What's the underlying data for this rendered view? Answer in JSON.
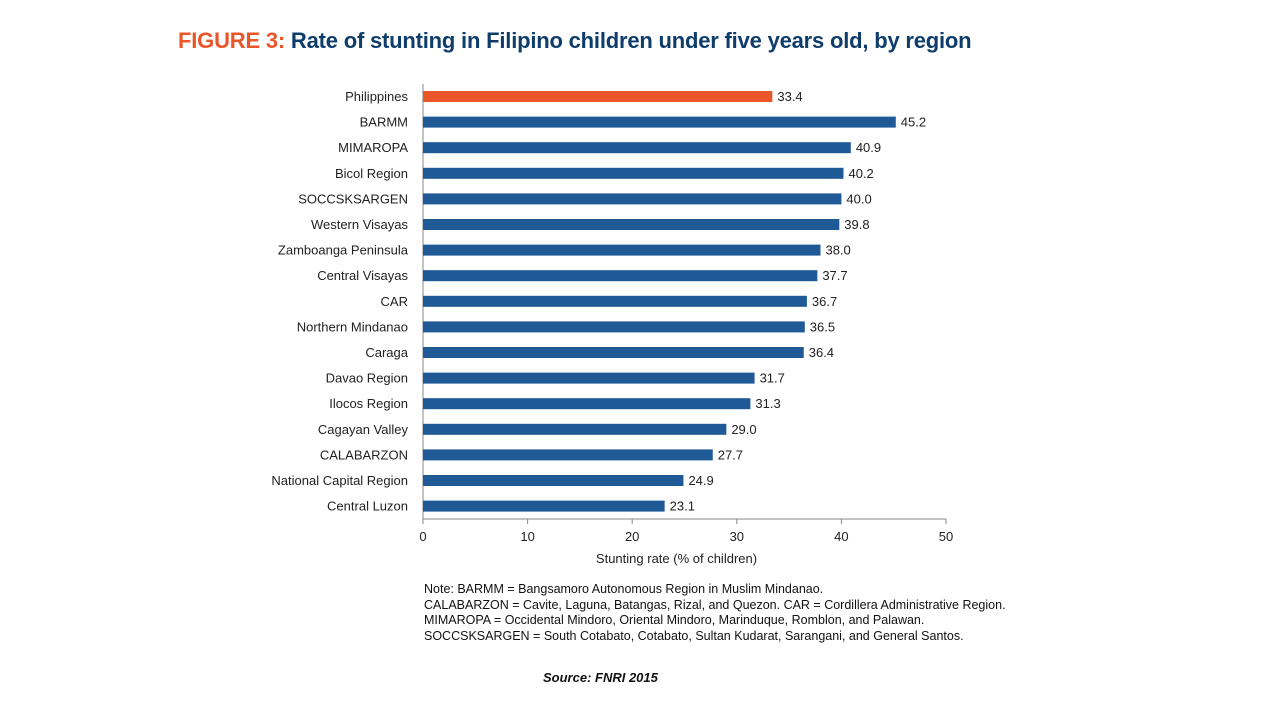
{
  "title": {
    "label": "FIGURE 3:",
    "text": "Rate of stunting in Filipino children under five years old, by region"
  },
  "chart_data": {
    "type": "bar",
    "orientation": "horizontal",
    "categories": [
      "Philippines",
      "BARMM",
      "MIMAROPA",
      "Bicol Region",
      "SOCCSKSARGEN",
      "Western Visayas",
      "Zamboanga Peninsula",
      "Central Visayas",
      "CAR",
      "Northern Mindanao",
      "Caraga",
      "Davao Region",
      "Ilocos Region",
      "Cagayan Valley",
      "CALABARZON",
      "National Capital Region",
      "Central Luzon"
    ],
    "values": [
      33.4,
      45.2,
      40.9,
      40.2,
      40.0,
      39.8,
      38.0,
      37.7,
      36.7,
      36.5,
      36.4,
      31.7,
      31.3,
      29.0,
      27.7,
      24.9,
      23.1
    ],
    "value_labels": [
      "33.4",
      "45.2",
      "40.9",
      "40.2",
      "40.0",
      "39.8",
      "38.0",
      "37.7",
      "36.7",
      "36.5",
      "36.4",
      "31.7",
      "31.3",
      "29.0",
      "27.7",
      "24.9",
      "23.1"
    ],
    "highlight_category": "Philippines",
    "colors": {
      "highlight": "#e8562a",
      "bar": "#1f5a96",
      "axis": "#888888"
    },
    "xlabel": "Stunting rate (% of children)",
    "xlim": [
      0,
      50
    ],
    "xticks": [
      0,
      10,
      20,
      30,
      40,
      50
    ],
    "grid": false
  },
  "note": {
    "lines": [
      "Note: BARMM = Bangsamoro Autonomous Region in Muslim Mindanao.",
      "CALABARZON = Cavite, Laguna, Batangas, Rizal, and Quezon. CAR = Cordillera Administrative Region.",
      "MIMAROPA = Occidental Mindoro, Oriental Mindoro, Marinduque, Romblon, and Palawan.",
      "SOCCSKSARGEN = South Cotabato, Cotabato, Sultan Kudarat, Sarangani, and General Santos."
    ]
  },
  "source": "Source: FNRI 2015"
}
